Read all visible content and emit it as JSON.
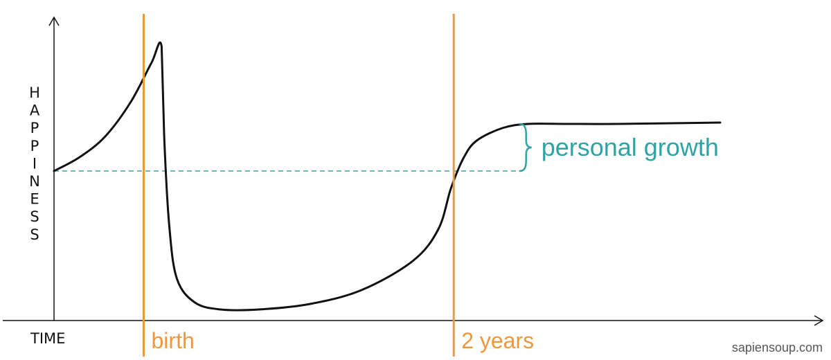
{
  "chart_data": {
    "type": "line",
    "ylabel": "HAPPINESS",
    "xlabel": "TIME",
    "grid": false,
    "legend": "none",
    "series": [
      {
        "color": "#111111",
        "x": [
          0,
          10,
          20,
          30,
          38,
          42,
          43,
          45,
          48,
          55,
          65,
          80,
          100,
          120,
          140,
          150,
          155,
          160,
          165,
          175,
          185,
          200,
          220,
          260
        ],
        "y": [
          100,
          110,
          125,
          150,
          178,
          190,
          125,
          60,
          22,
          5,
          0,
          0,
          4,
          14,
          35,
          58,
          88,
          110,
          122,
          131,
          134,
          134,
          134,
          135
        ]
      }
    ],
    "xlim": [
      0,
      270
    ],
    "ylim": [
      -8,
      205
    ],
    "baseline": {
      "y": 100,
      "x_end": 181,
      "color": "#2ea3a3"
    },
    "markers": [
      {
        "x": 35,
        "label": "birth",
        "color": "#f0963c"
      },
      {
        "x": 156,
        "label": "2 years",
        "color": "#f0963c"
      }
    ],
    "annotation": {
      "label": "personal growth",
      "color": "#2ea3a3",
      "from_y": 100,
      "to_y": 134
    },
    "credit": "sapiensoup.com",
    "axis_color": "#111111",
    "curve_color": "#111111"
  }
}
